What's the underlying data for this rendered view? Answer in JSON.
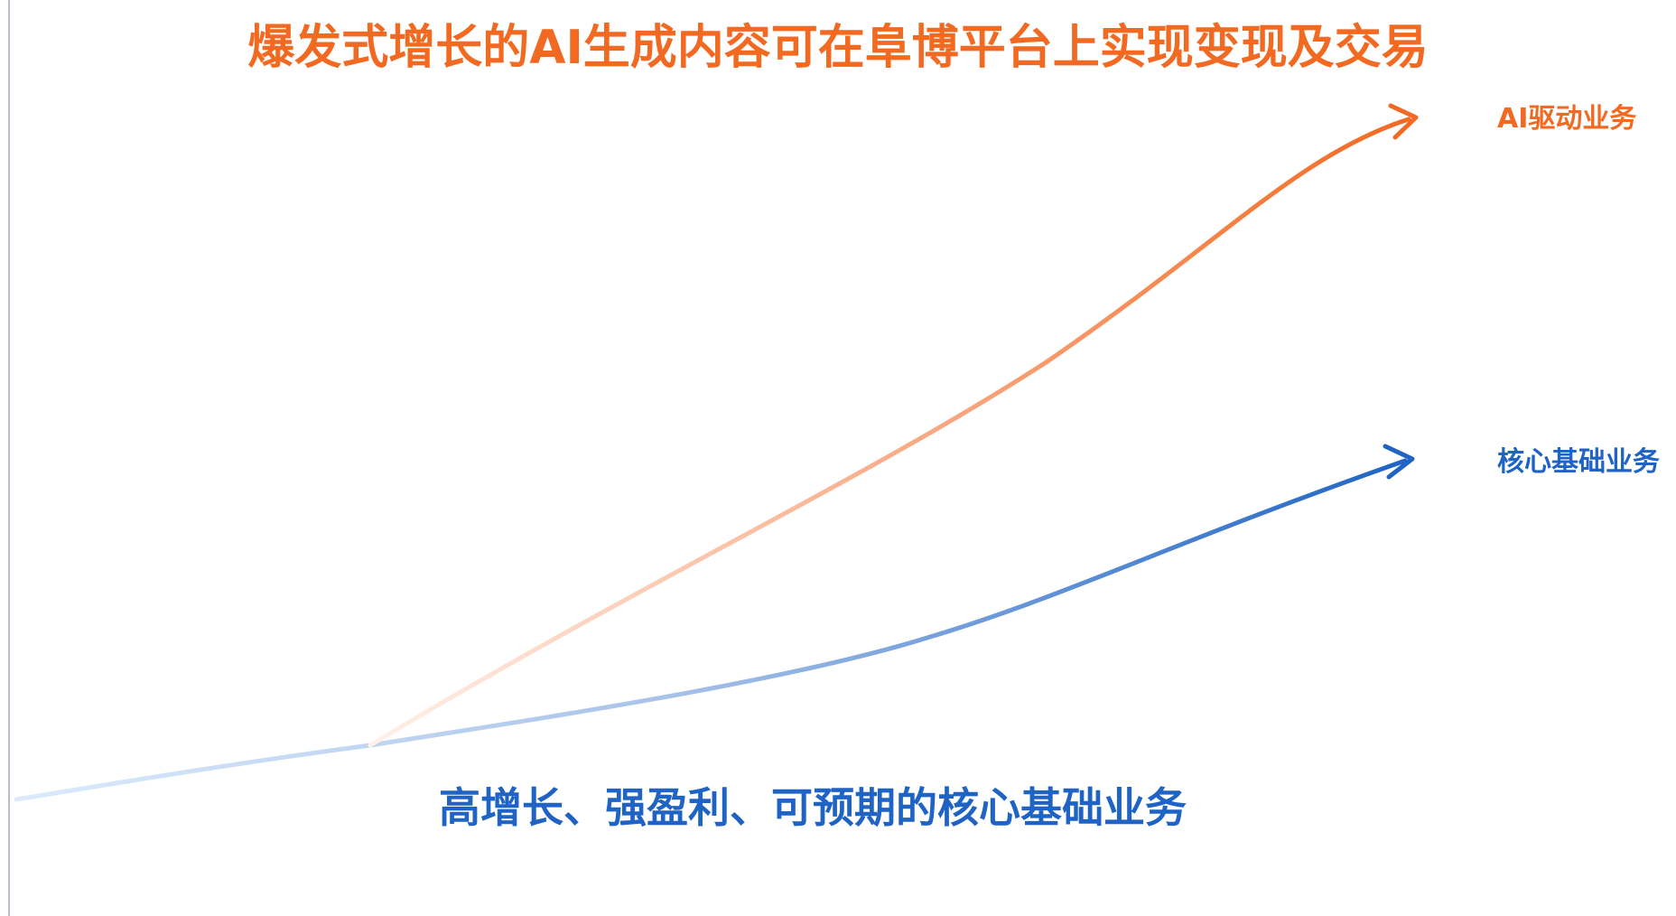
{
  "colors": {
    "ai_accent": "#F26A22",
    "core_accent": "#1F63C4",
    "axis": "#B8BCC8"
  },
  "diagram": {
    "headline": "爆发式增长的AI生成内容可在阜博平台上实现变现及交易",
    "subline": "高增长、强盈利、可预期的核心基础业务",
    "curves": {
      "ai": {
        "label": "AI驱动业务"
      },
      "core": {
        "label": "核心基础业务"
      }
    }
  }
}
